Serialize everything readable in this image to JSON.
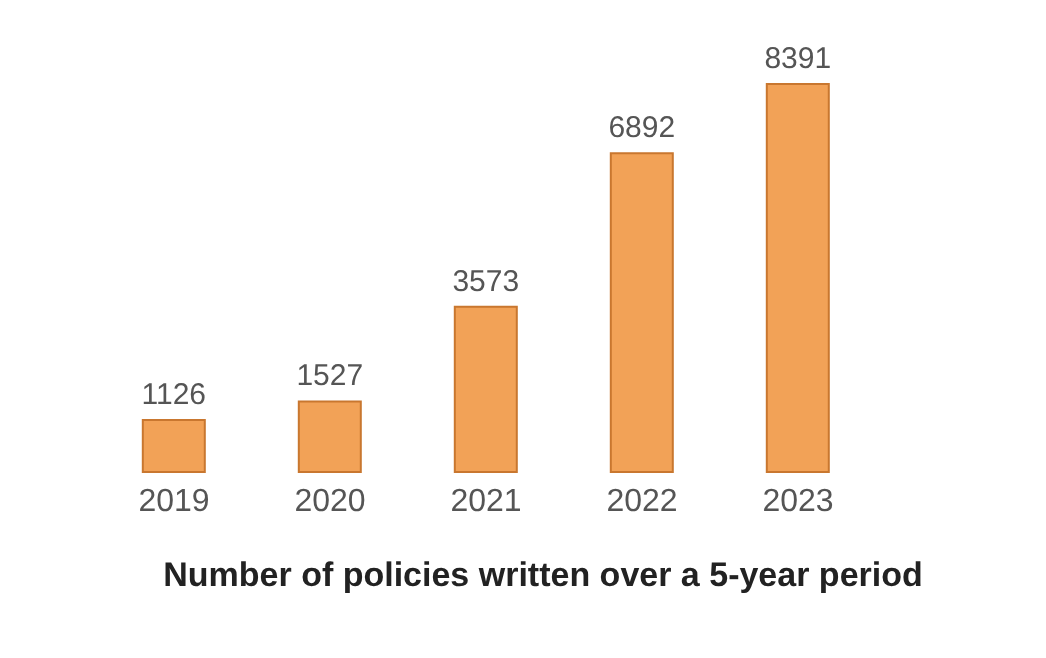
{
  "chart_data": {
    "type": "bar",
    "title": "Number of policies written over a 5-year period",
    "categories": [
      "2019",
      "2020",
      "2021",
      "2022",
      "2023"
    ],
    "values": [
      1126,
      1527,
      3573,
      6892,
      8391
    ],
    "color": "#f2a257",
    "data_labels": true,
    "grid": false,
    "legend": false
  }
}
